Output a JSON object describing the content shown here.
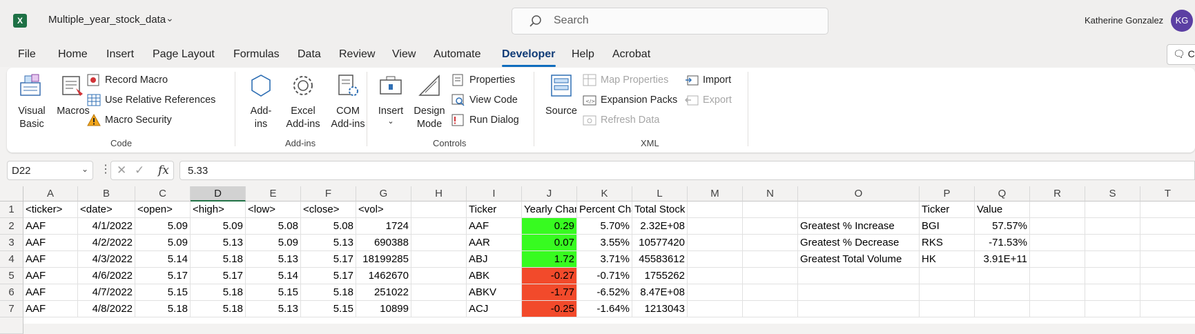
{
  "app": {
    "name": "Excel",
    "logo_letter": "X"
  },
  "title_bar": {
    "document_title": "Multiple_year_stock_data",
    "search_placeholder": "Search",
    "user_name": "Katherine Gonzalez",
    "user_initials": "KG"
  },
  "menu": {
    "tabs": [
      "File",
      "Home",
      "Insert",
      "Page Layout",
      "Formulas",
      "Data",
      "Review",
      "View",
      "Automate",
      "Developer",
      "Help",
      "Acrobat"
    ],
    "active_tab": "Developer",
    "comments_label": "Co"
  },
  "ribbon": {
    "code": {
      "label": "Code",
      "visual_basic": "Visual Basic",
      "macros": "Macros",
      "record_macro": "Record Macro",
      "use_relative_references": "Use Relative References",
      "macro_security": "Macro Security"
    },
    "addins": {
      "label": "Add-ins",
      "add_ins": "Add-ins",
      "excel_add_ins": "Excel Add-ins",
      "com_add_ins": "COM Add-ins"
    },
    "controls": {
      "label": "Controls",
      "insert": "Insert",
      "design_mode": "Design Mode",
      "properties": "Properties",
      "view_code": "View Code",
      "run_dialog": "Run Dialog"
    },
    "xml": {
      "label": "XML",
      "source": "Source",
      "map_properties": "Map Properties",
      "expansion_packs": "Expansion Packs",
      "refresh_data": "Refresh Data",
      "import": "Import",
      "export": "Export"
    }
  },
  "formula_bar": {
    "name_box": "D22",
    "formula": "5.33"
  },
  "sheet": {
    "selected_column": "D",
    "columns": [
      "A",
      "B",
      "C",
      "D",
      "E",
      "F",
      "G",
      "H",
      "I",
      "J",
      "K",
      "L",
      "M",
      "N",
      "O",
      "P",
      "Q",
      "R",
      "S",
      "T"
    ],
    "rows": [
      "1",
      "2",
      "3",
      "4",
      "5",
      "6",
      "7"
    ],
    "row1": {
      "A": "<ticker>",
      "B": "<date>",
      "C": "<open>",
      "D": "<high>",
      "E": "<low>",
      "F": "<close>",
      "G": "<vol>",
      "I": "Ticker",
      "J": "Yearly Change",
      "K": "Percent Change",
      "L": "Total Stock Volume",
      "P": "Ticker",
      "Q": "Value"
    },
    "data": [
      {
        "A": "AAF",
        "B": "4/1/2022",
        "C": "5.09",
        "D": "5.09",
        "E": "5.08",
        "F": "5.08",
        "G": "1724",
        "I": "AAF",
        "J": "0.29",
        "K": "5.70%",
        "L": "2.32E+08",
        "O": "Greatest % Increase",
        "P": "BGI",
        "Q": "57.57%"
      },
      {
        "A": "AAF",
        "B": "4/2/2022",
        "C": "5.09",
        "D": "5.13",
        "E": "5.09",
        "F": "5.13",
        "G": "690388",
        "I": "AAR",
        "J": "0.07",
        "K": "3.55%",
        "L": "10577420",
        "O": "Greatest % Decrease",
        "P": "RKS",
        "Q": "-71.53%"
      },
      {
        "A": "AAF",
        "B": "4/3/2022",
        "C": "5.14",
        "D": "5.18",
        "E": "5.13",
        "F": "5.17",
        "G": "18199285",
        "I": "ABJ",
        "J": "1.72",
        "K": "3.71%",
        "L": "45583612",
        "O": "Greatest Total Volume",
        "P": "HK",
        "Q": "3.91E+11"
      },
      {
        "A": "AAF",
        "B": "4/6/2022",
        "C": "5.17",
        "D": "5.17",
        "E": "5.14",
        "F": "5.17",
        "G": "1462670",
        "I": "ABK",
        "J": "-0.27",
        "K": "-0.71%",
        "L": "1755262",
        "O": "",
        "P": "",
        "Q": ""
      },
      {
        "A": "AAF",
        "B": "4/7/2022",
        "C": "5.15",
        "D": "5.18",
        "E": "5.15",
        "F": "5.18",
        "G": "251022",
        "I": "ABKV",
        "J": "-1.77",
        "K": "-6.52%",
        "L": "8.47E+08",
        "O": "",
        "P": "",
        "Q": ""
      },
      {
        "A": "AAF",
        "B": "4/8/2022",
        "C": "5.18",
        "D": "5.18",
        "E": "5.13",
        "F": "5.15",
        "G": "10899",
        "I": "ACJ",
        "J": "-0.25",
        "K": "-1.64%",
        "L": "1213043",
        "O": "",
        "P": "",
        "Q": ""
      }
    ],
    "colors": {
      "positive": "#37fb20",
      "negative": "#f24a2b",
      "accent": "#217346"
    }
  }
}
